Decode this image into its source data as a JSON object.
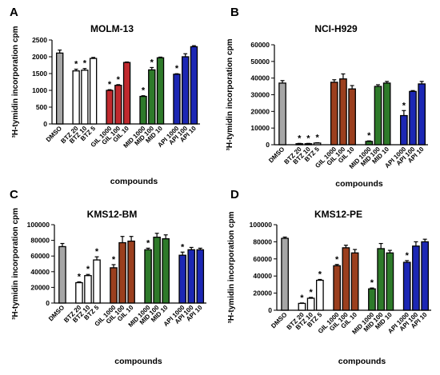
{
  "chart_data": [
    {
      "type": "bar",
      "panel": "A",
      "title": "MOLM-13",
      "ylabel": "³H-tymidin incorporation cpm",
      "xlabel": "compounds",
      "ylim": [
        0,
        2500
      ],
      "yticks": [
        0,
        500,
        1000,
        1500,
        2000,
        2500
      ],
      "categories": [
        "DMSO",
        "BTZ 20",
        "BTZ 10",
        "BTZ 5",
        "GIL 1000",
        "GIL 100",
        "GIL 10",
        "MID 1000",
        "MID 100",
        "MID 10",
        "API 1000",
        "API 100",
        "API 10"
      ],
      "values": [
        2110,
        1580,
        1600,
        1950,
        1000,
        1150,
        1830,
        820,
        1610,
        1970,
        1480,
        2000,
        2300
      ],
      "errors": [
        90,
        50,
        50,
        30,
        20,
        20,
        15,
        20,
        70,
        20,
        15,
        90,
        30
      ],
      "significant": [
        false,
        true,
        true,
        false,
        true,
        true,
        false,
        true,
        true,
        false,
        true,
        false,
        false
      ],
      "colors": [
        "#a6a6a6",
        "#ffffff",
        "#ffffff",
        "#ffffff",
        "#c0292e",
        "#c0292e",
        "#c0292e",
        "#2e7a2a",
        "#2e7a2a",
        "#2e7a2a",
        "#1c27b4",
        "#1c27b4",
        "#1c27b4"
      ]
    },
    {
      "type": "bar",
      "panel": "B",
      "title": "NCI-H929",
      "ylabel": "³H-tymidin incorporation cpm",
      "xlabel": "compounds",
      "ylim": [
        0,
        60000
      ],
      "yticks": [
        0,
        10000,
        20000,
        30000,
        40000,
        50000,
        60000
      ],
      "categories": [
        "DMSO",
        "BTZ 20",
        "BTZ 10",
        "BTZ 5",
        "GIL 1000",
        "GIL 100",
        "GIL 10",
        "MID 1000",
        "MID 100",
        "MID 10",
        "API 1000",
        "API 100",
        "API 10"
      ],
      "values": [
        37000,
        600,
        600,
        1000,
        37500,
        39500,
        33500,
        2000,
        35000,
        37000,
        17500,
        32000,
        36500
      ],
      "errors": [
        1500,
        200,
        200,
        200,
        1500,
        3000,
        2000,
        300,
        1000,
        1000,
        3000,
        500,
        1500
      ],
      "significant": [
        false,
        true,
        true,
        true,
        false,
        false,
        false,
        true,
        false,
        false,
        true,
        false,
        false
      ],
      "colors": [
        "#a6a6a6",
        "#ffffff",
        "#ffffff",
        "#ffffff",
        "#9b3f1e",
        "#9b3f1e",
        "#9b3f1e",
        "#2e7a2a",
        "#2e7a2a",
        "#2e7a2a",
        "#1c27b4",
        "#1c27b4",
        "#1c27b4"
      ]
    },
    {
      "type": "bar",
      "panel": "C",
      "title": "KMS12-BM",
      "ylabel": "³H-tymidin incorporation cpm",
      "xlabel": "compounds",
      "ylim": [
        0,
        100000
      ],
      "yticks": [
        0,
        20000,
        40000,
        60000,
        80000,
        100000
      ],
      "categories": [
        "DMSO",
        "BTZ 20",
        "BTZ 10",
        "BTZ 5",
        "GIL 1000",
        "GIL 100",
        "GIL 10",
        "MID 1000",
        "MID 100",
        "MID 10",
        "API 1000",
        "API 100",
        "API 10"
      ],
      "values": [
        72000,
        26000,
        35000,
        55000,
        45000,
        77000,
        79000,
        68000,
        84000,
        82000,
        61000,
        68000,
        68000
      ],
      "errors": [
        4000,
        1000,
        1500,
        4000,
        4000,
        8000,
        6000,
        2000,
        5000,
        5000,
        4000,
        3000,
        2000
      ],
      "significant": [
        false,
        true,
        true,
        true,
        true,
        false,
        false,
        true,
        false,
        false,
        true,
        false,
        false
      ],
      "colors": [
        "#a6a6a6",
        "#ffffff",
        "#ffffff",
        "#ffffff",
        "#9b3f1e",
        "#9b3f1e",
        "#9b3f1e",
        "#2e7a2a",
        "#2e7a2a",
        "#2e7a2a",
        "#1c27b4",
        "#1c27b4",
        "#1c27b4"
      ]
    },
    {
      "type": "bar",
      "panel": "D",
      "title": "KMS12-PE",
      "ylabel": "³H-tymidin incorporation cpm",
      "xlabel": "compounds",
      "ylim": [
        0,
        100000
      ],
      "yticks": [
        0,
        20000,
        40000,
        60000,
        80000,
        100000
      ],
      "categories": [
        "DMSO",
        "BTZ 20",
        "BTZ 10",
        "BTZ 5",
        "GIL 1000",
        "GIL 100",
        "GIL 10",
        "MID 1000",
        "MID 100",
        "MID 10",
        "API 1000",
        "API 100",
        "API 10"
      ],
      "values": [
        84000,
        8000,
        14000,
        35000,
        52000,
        73000,
        67000,
        25000,
        72000,
        67000,
        56000,
        75000,
        80000
      ],
      "errors": [
        1500,
        500,
        1000,
        1000,
        1500,
        3000,
        4000,
        1000,
        6000,
        3000,
        2000,
        5000,
        3000
      ],
      "significant": [
        false,
        true,
        true,
        true,
        true,
        false,
        false,
        true,
        false,
        false,
        true,
        false,
        false
      ],
      "colors": [
        "#a6a6a6",
        "#ffffff",
        "#ffffff",
        "#ffffff",
        "#9b3f1e",
        "#9b3f1e",
        "#9b3f1e",
        "#2e7a2a",
        "#2e7a2a",
        "#2e7a2a",
        "#1c27b4",
        "#1c27b4",
        "#1c27b4"
      ]
    }
  ]
}
